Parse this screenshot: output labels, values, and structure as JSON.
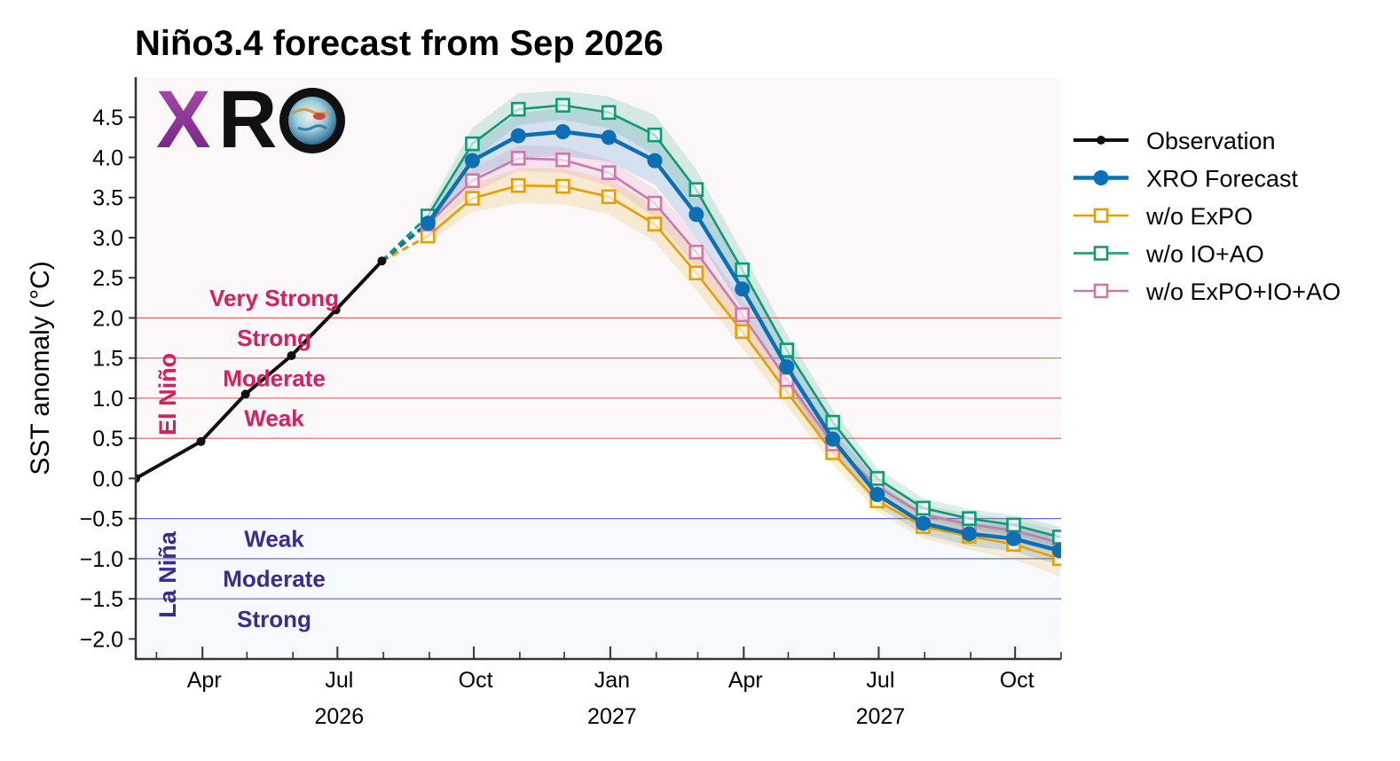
{
  "chart_data": {
    "type": "line",
    "title": "Niño3.4 forecast from Sep 2026",
    "ylabel": "SST anomaly (°C)",
    "xlabel": "",
    "ylim": [
      -2.25,
      5.0
    ],
    "x_range": [
      "2026-02-15",
      "2027-11-01"
    ],
    "yticks": [
      -2.0,
      -1.5,
      -1.0,
      -0.5,
      0.0,
      0.5,
      1.0,
      1.5,
      2.0,
      2.5,
      3.0,
      3.5,
      4.0,
      4.5
    ],
    "ytick_labels": [
      "−2.0",
      "−1.5",
      "−1.0",
      "−0.5",
      "0.0",
      "0.5",
      "1.0",
      "1.5",
      "2.0",
      "2.5",
      "3.0",
      "3.5",
      "4.0",
      "4.5"
    ],
    "xticks_major": [
      {
        "date": "2026-04-01",
        "label": "Apr",
        "year": ""
      },
      {
        "date": "2026-07-01",
        "label": "Jul",
        "year": "2026"
      },
      {
        "date": "2026-10-01",
        "label": "Oct",
        "year": ""
      },
      {
        "date": "2027-01-01",
        "label": "Jan",
        "year": "2027"
      },
      {
        "date": "2027-04-01",
        "label": "Apr",
        "year": ""
      },
      {
        "date": "2027-07-01",
        "label": "Jul",
        "year": "2027"
      },
      {
        "date": "2027-10-01",
        "label": "Oct",
        "year": ""
      }
    ],
    "thresholds_el_nino": [
      0.5,
      1.0,
      1.5,
      2.0
    ],
    "thresholds_la_nina": [
      -0.5,
      -1.0,
      -1.5
    ],
    "el_nino_label": "El Niño",
    "la_nina_label": "La Niña",
    "el_nino_categories": [
      {
        "label": "Very Strong",
        "y": 2.25
      },
      {
        "label": "Strong",
        "y": 1.75
      },
      {
        "label": "Moderate",
        "y": 1.25
      },
      {
        "label": "Weak",
        "y": 0.75
      }
    ],
    "la_nina_categories": [
      {
        "label": "Weak",
        "y": -0.75
      },
      {
        "label": "Moderate",
        "y": -1.25
      },
      {
        "label": "Strong",
        "y": -1.75
      }
    ],
    "legend_position": "right",
    "logo_text": "XRO",
    "series": [
      {
        "name": "Observation",
        "color": "#111111",
        "marker": "dot",
        "x": [
          "2026-02-15",
          "2026-03-31",
          "2026-04-30",
          "2026-05-31",
          "2026-06-30",
          "2026-07-31"
        ],
        "values": [
          0.0,
          0.46,
          1.05,
          1.53,
          2.1,
          2.71
        ]
      },
      {
        "name": "XRO Forecast",
        "color": "#0a6fb5",
        "marker": "circle",
        "x": [
          "2026-08-31",
          "2026-09-30",
          "2026-10-31",
          "2026-11-30",
          "2026-12-31",
          "2027-01-31",
          "2027-02-28",
          "2027-03-31",
          "2027-04-30",
          "2027-05-31",
          "2027-06-30",
          "2027-07-31",
          "2027-08-31",
          "2027-09-30",
          "2027-10-31"
        ],
        "values": [
          3.18,
          3.96,
          4.27,
          4.32,
          4.25,
          3.96,
          3.29,
          2.36,
          1.39,
          0.49,
          -0.2,
          -0.56,
          -0.69,
          -0.75,
          -0.9
        ],
        "band_half_width": [
          0.08,
          0.2,
          0.28,
          0.3,
          0.3,
          0.3,
          0.28,
          0.25,
          0.22,
          0.18,
          0.15,
          0.14,
          0.15,
          0.16,
          0.18
        ]
      },
      {
        "name": "w/o ExPO",
        "color": "#e69f00",
        "marker": "square-open",
        "x": [
          "2026-08-31",
          "2026-09-30",
          "2026-10-31",
          "2026-11-30",
          "2026-12-31",
          "2027-01-31",
          "2027-02-28",
          "2027-03-31",
          "2027-04-30",
          "2027-05-31",
          "2027-06-30",
          "2027-07-31",
          "2027-08-31",
          "2027-09-30",
          "2027-10-31"
        ],
        "values": [
          3.02,
          3.49,
          3.65,
          3.64,
          3.51,
          3.17,
          2.56,
          1.83,
          1.08,
          0.32,
          -0.28,
          -0.6,
          -0.72,
          -0.82,
          -1.0
        ],
        "band_half_width": [
          0.08,
          0.17,
          0.22,
          0.22,
          0.22,
          0.22,
          0.22,
          0.2,
          0.18,
          0.15,
          0.14,
          0.15,
          0.17,
          0.19,
          0.22
        ]
      },
      {
        "name": "w/o IO+AO",
        "color": "#109a73",
        "marker": "square-open",
        "x": [
          "2026-08-31",
          "2026-09-30",
          "2026-10-31",
          "2026-11-30",
          "2026-12-31",
          "2027-01-31",
          "2027-02-28",
          "2027-03-31",
          "2027-04-30",
          "2027-05-31",
          "2027-06-30",
          "2027-07-31",
          "2027-08-31",
          "2027-09-30",
          "2027-10-31"
        ],
        "values": [
          3.27,
          4.17,
          4.6,
          4.65,
          4.56,
          4.28,
          3.6,
          2.6,
          1.6,
          0.7,
          0.0,
          -0.37,
          -0.5,
          -0.58,
          -0.73
        ],
        "band_half_width": [
          0.08,
          0.2,
          0.2,
          0.18,
          0.2,
          0.25,
          0.25,
          0.22,
          0.2,
          0.16,
          0.13,
          0.12,
          0.12,
          0.12,
          0.13
        ]
      },
      {
        "name": "w/o ExPO+IO+AO",
        "color": "#cc79a7",
        "marker": "square-open",
        "x": [
          "2026-08-31",
          "2026-09-30",
          "2026-10-31",
          "2026-11-30",
          "2026-12-31",
          "2027-01-31",
          "2027-02-28",
          "2027-03-31",
          "2027-04-30",
          "2027-05-31",
          "2027-06-30",
          "2027-07-31",
          "2027-08-31",
          "2027-09-30",
          "2027-10-31"
        ],
        "values": [
          3.17,
          3.71,
          3.99,
          3.97,
          3.81,
          3.43,
          2.82,
          2.04,
          1.23,
          0.43,
          -0.1,
          -0.45,
          -0.57,
          -0.65,
          -0.8
        ],
        "band_half_width": [
          0.08,
          0.15,
          0.16,
          0.16,
          0.16,
          0.18,
          0.2,
          0.2,
          0.18,
          0.14,
          0.12,
          0.12,
          0.13,
          0.14,
          0.15
        ]
      }
    ]
  }
}
